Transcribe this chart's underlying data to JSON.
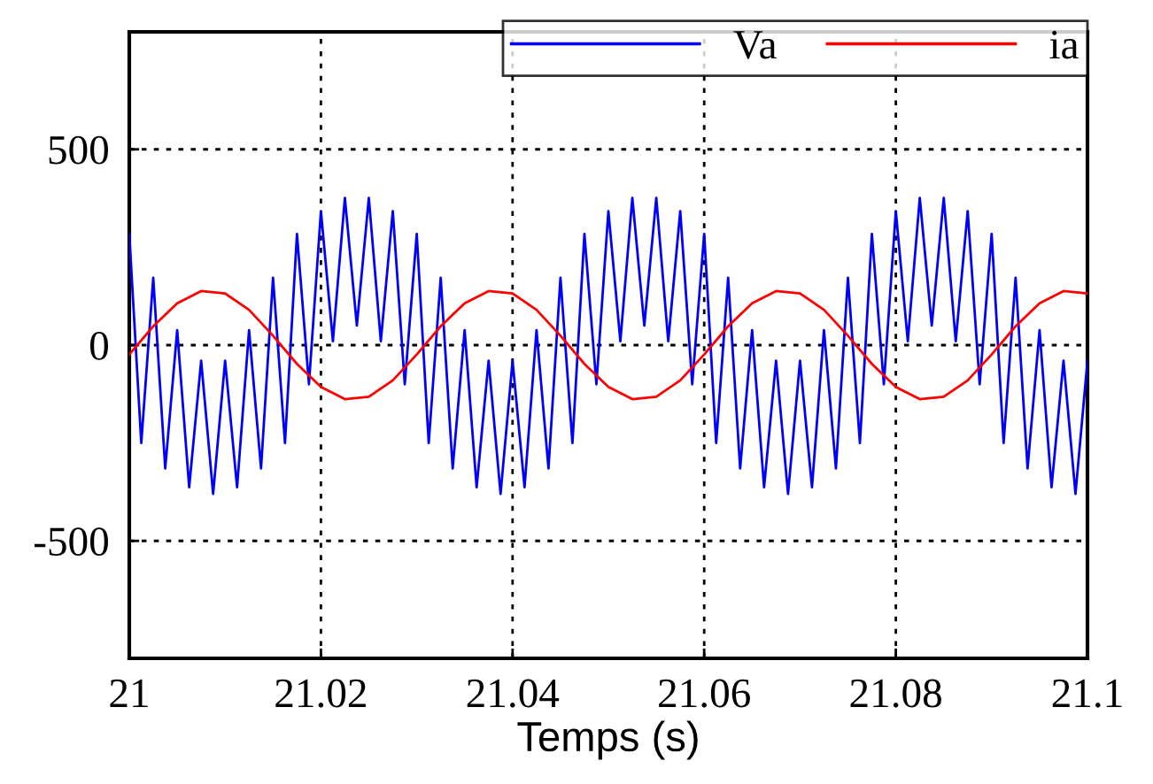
{
  "chart_data": {
    "type": "line",
    "xlabel": "Temps (s)",
    "xlim": [
      21,
      21.1
    ],
    "xticks": [
      21,
      21.02,
      21.04,
      21.06,
      21.08,
      21.1
    ],
    "ylim": [
      -800,
      800
    ],
    "yticks": [
      -500,
      0,
      500
    ],
    "grid": true,
    "legend": "top right",
    "line_style": "solid",
    "marker": "none",
    "series": [
      {
        "name": "Va",
        "color": "#0000ff",
        "x": [
          21.0,
          21.00125,
          21.0025,
          21.00375,
          21.005,
          21.00625,
          21.0075,
          21.00875,
          21.01,
          21.01125,
          21.0125,
          21.01375,
          21.015,
          21.01625,
          21.0175,
          21.01875,
          21.02,
          21.02125,
          21.0225,
          21.02375,
          21.025,
          21.02625,
          21.0275,
          21.02875,
          21.03,
          21.03125,
          21.0325,
          21.03375,
          21.035,
          21.03625,
          21.0375,
          21.03875,
          21.04,
          21.04125,
          21.0425,
          21.04375,
          21.045,
          21.04625,
          21.0475,
          21.04875,
          21.05,
          21.05125,
          21.0525,
          21.05375,
          21.055,
          21.05625,
          21.0575,
          21.05875,
          21.06,
          21.06125,
          21.0625,
          21.06375,
          21.065,
          21.06625,
          21.0675,
          21.06875,
          21.07,
          21.07125,
          21.0725,
          21.07375,
          21.075,
          21.07625,
          21.0775,
          21.07875,
          21.08,
          21.08125,
          21.0825,
          21.08375,
          21.085,
          21.08625,
          21.0875,
          21.08875,
          21.09,
          21.09125,
          21.0925,
          21.09375,
          21.095,
          21.09625,
          21.0975,
          21.09875,
          21.1
        ],
        "values": [
          284,
          -250,
          172,
          -315,
          38,
          -363,
          -40,
          -380,
          -40,
          -363,
          38,
          -315,
          172,
          -250,
          284,
          -100,
          342,
          10,
          376,
          50,
          376,
          10,
          342,
          -100,
          284,
          -250,
          172,
          -315,
          38,
          -363,
          -40,
          -380,
          -40,
          -363,
          38,
          -315,
          172,
          -250,
          284,
          -100,
          342,
          10,
          376,
          50,
          376,
          10,
          342,
          -100,
          284,
          -250,
          172,
          -315,
          38,
          -363,
          -40,
          -380,
          -40,
          -363,
          38,
          -315,
          172,
          -250,
          284,
          -100,
          342,
          10,
          376,
          50,
          376,
          10,
          342,
          -100,
          284,
          -250,
          172,
          -315,
          38,
          -363,
          -40,
          -380,
          -40
        ]
      },
      {
        "name": "ia",
        "color": "#ff0000",
        "x": [
          21.0,
          21.0025,
          21.005,
          21.0075,
          21.01,
          21.0125,
          21.015,
          21.0175,
          21.02,
          21.0225,
          21.025,
          21.0275,
          21.03,
          21.0325,
          21.035,
          21.0375,
          21.04,
          21.0425,
          21.045,
          21.0475,
          21.05,
          21.0525,
          21.055,
          21.0575,
          21.06,
          21.0625,
          21.065,
          21.0675,
          21.07,
          21.0725,
          21.075,
          21.0775,
          21.08,
          21.0825,
          21.085,
          21.0875,
          21.09,
          21.0925,
          21.095,
          21.0975,
          21.1
        ],
        "values": [
          -24,
          48,
          107,
          138,
          132,
          90,
          24,
          -48,
          -107,
          -138,
          -132,
          -90,
          -24,
          48,
          107,
          138,
          132,
          90,
          24,
          -48,
          -107,
          -138,
          -132,
          -90,
          -24,
          48,
          107,
          138,
          132,
          90,
          24,
          -48,
          -107,
          -138,
          -132,
          -90,
          -24,
          48,
          107,
          138,
          132
        ]
      }
    ]
  }
}
